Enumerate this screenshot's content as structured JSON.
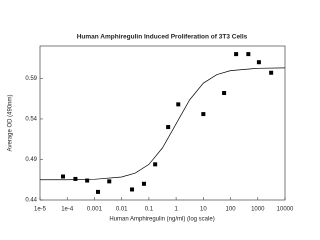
{
  "chart_data": {
    "type": "scatter",
    "title": "Human Amphiregulin Induced Proliferation of 3T3 Cells",
    "x_label": "Human Amphiregulin (ng/ml) (log scale)",
    "y_label": "Average OD (490nm)",
    "xscale": "log",
    "xlim": [
      1e-05,
      10000
    ],
    "xticks": [
      {
        "value": 1e-05,
        "label": "1e-5"
      },
      {
        "value": 0.0001,
        "label": "1e-4"
      },
      0.001,
      0.01,
      0.1,
      1,
      10,
      100,
      1000,
      10000
    ],
    "ylim": [
      0.44,
      0.63
    ],
    "yticks": [
      0.44,
      0.49,
      0.54,
      0.59
    ],
    "series": [
      {
        "type": "scatter",
        "color": "#000000",
        "x": [
          7e-05,
          0.0002,
          0.00054,
          0.00135,
          0.0035,
          0.024,
          0.066,
          0.17,
          0.51,
          1.2,
          10,
          58,
          160,
          450,
          1100,
          3100
        ],
        "values": [
          0.469,
          0.466,
          0.464,
          0.45,
          0.463,
          0.453,
          0.46,
          0.484,
          0.53,
          0.558,
          0.546,
          0.572,
          0.62,
          0.62,
          0.61,
          0.597
        ]
      },
      {
        "type": "line",
        "color": "#000000",
        "x": [
          1e-05,
          0.0001,
          0.001,
          0.01,
          0.0316,
          0.1,
          0.316,
          1,
          3.16,
          10,
          31.6,
          100,
          1000,
          10000
        ],
        "values": [
          0.465,
          0.465,
          0.4655,
          0.4684,
          0.4732,
          0.4839,
          0.5043,
          0.534,
          0.5637,
          0.5841,
          0.5948,
          0.5996,
          0.6025,
          0.603
        ]
      }
    ]
  }
}
